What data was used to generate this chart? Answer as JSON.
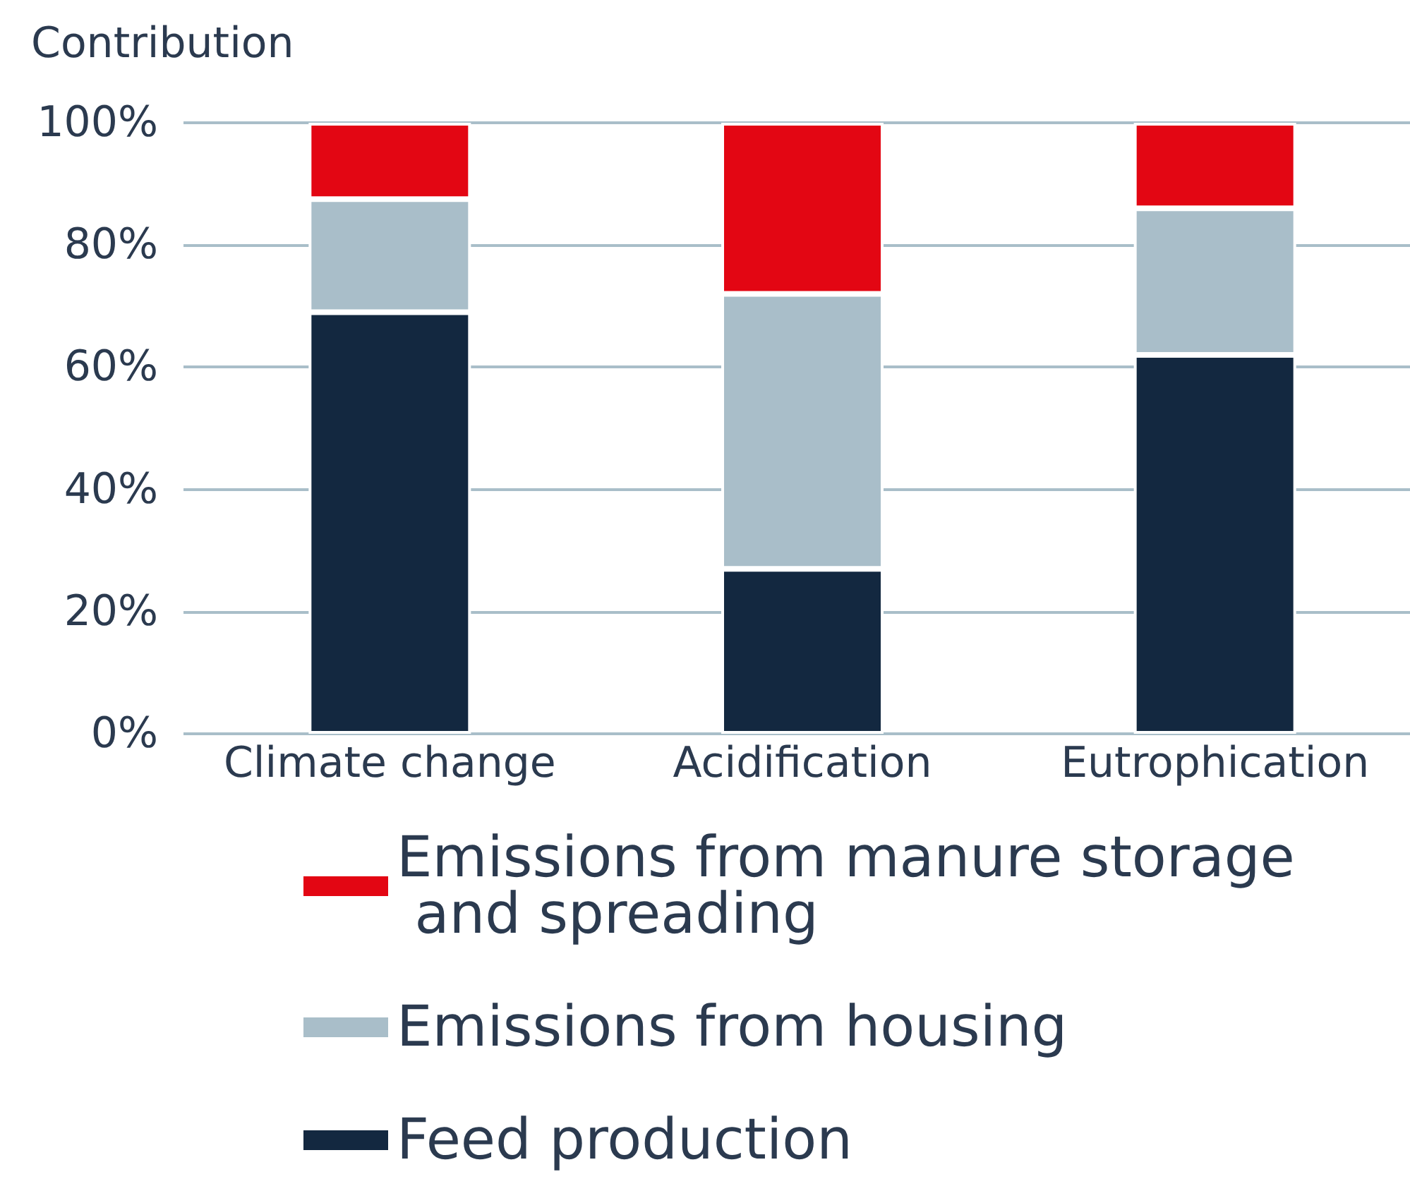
{
  "chart_data": {
    "type": "bar",
    "ylabel": "Contribution",
    "stacked": true,
    "categories": [
      "Climate change",
      "Acidification",
      "Eutrophication"
    ],
    "series": [
      {
        "name": "Feed production",
        "color": "#132840",
        "values": [
          69,
          27,
          62
        ]
      },
      {
        "name": "Emissions from housing",
        "color": "#a9bec9",
        "values": [
          18.5,
          45,
          24
        ]
      },
      {
        "name": "Emissions from manure storage and spreading",
        "color": "#e30613",
        "values": [
          12.5,
          28,
          14
        ]
      }
    ],
    "ylim": [
      0,
      100
    ],
    "yticks": [
      {
        "value": 0,
        "label": "0%"
      },
      {
        "value": 20,
        "label": "20%"
      },
      {
        "value": 40,
        "label": "40%"
      },
      {
        "value": 60,
        "label": "60%"
      },
      {
        "value": 80,
        "label": "80%"
      },
      {
        "value": 100,
        "label": "100%"
      }
    ],
    "grid": "y",
    "legend": "bottom"
  }
}
